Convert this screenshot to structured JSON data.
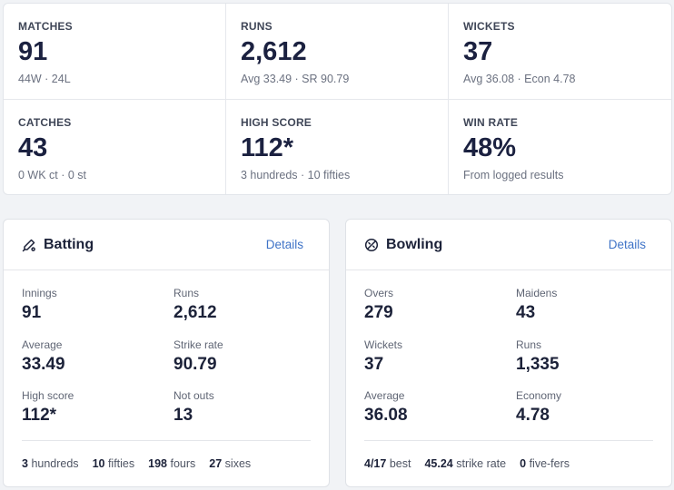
{
  "summary": {
    "matches": {
      "label": "MATCHES",
      "value": "91",
      "sub": "44W · 24L"
    },
    "runs": {
      "label": "RUNS",
      "value": "2,612",
      "sub": "Avg 33.49 · SR 90.79"
    },
    "wickets": {
      "label": "WICKETS",
      "value": "37",
      "sub": "Avg 36.08 · Econ 4.78"
    },
    "catches": {
      "label": "CATCHES",
      "value": "43",
      "sub": "0 WK ct · 0 st"
    },
    "high_score": {
      "label": "HIGH SCORE",
      "value": "112*",
      "sub": "3 hundreds · 10 fifties"
    },
    "win_rate": {
      "label": "WIN RATE",
      "value": "48%",
      "sub": "From logged results"
    }
  },
  "batting": {
    "title": "Batting",
    "icon": "cricket-bat-icon",
    "details_label": "Details",
    "metrics": [
      {
        "label": "Innings",
        "value": "91"
      },
      {
        "label": "Runs",
        "value": "2,612"
      },
      {
        "label": "Average",
        "value": "33.49"
      },
      {
        "label": "Strike rate",
        "value": "90.79"
      },
      {
        "label": "High score",
        "value": "112*"
      },
      {
        "label": "Not outs",
        "value": "13"
      }
    ],
    "footer": [
      {
        "value": "3",
        "label": "hundreds"
      },
      {
        "value": "10",
        "label": "fifties"
      },
      {
        "value": "198",
        "label": "fours"
      },
      {
        "value": "27",
        "label": "sixes"
      }
    ]
  },
  "bowling": {
    "title": "Bowling",
    "icon": "cricket-ball-icon",
    "details_label": "Details",
    "metrics": [
      {
        "label": "Overs",
        "value": "279"
      },
      {
        "label": "Maidens",
        "value": "43"
      },
      {
        "label": "Wickets",
        "value": "37"
      },
      {
        "label": "Runs",
        "value": "1,335"
      },
      {
        "label": "Average",
        "value": "36.08"
      },
      {
        "label": "Economy",
        "value": "4.78"
      }
    ],
    "footer": [
      {
        "value": "4/17",
        "label": "best"
      },
      {
        "value": "45.24",
        "label": "strike rate"
      },
      {
        "value": "0",
        "label": "five-fers"
      }
    ]
  }
}
